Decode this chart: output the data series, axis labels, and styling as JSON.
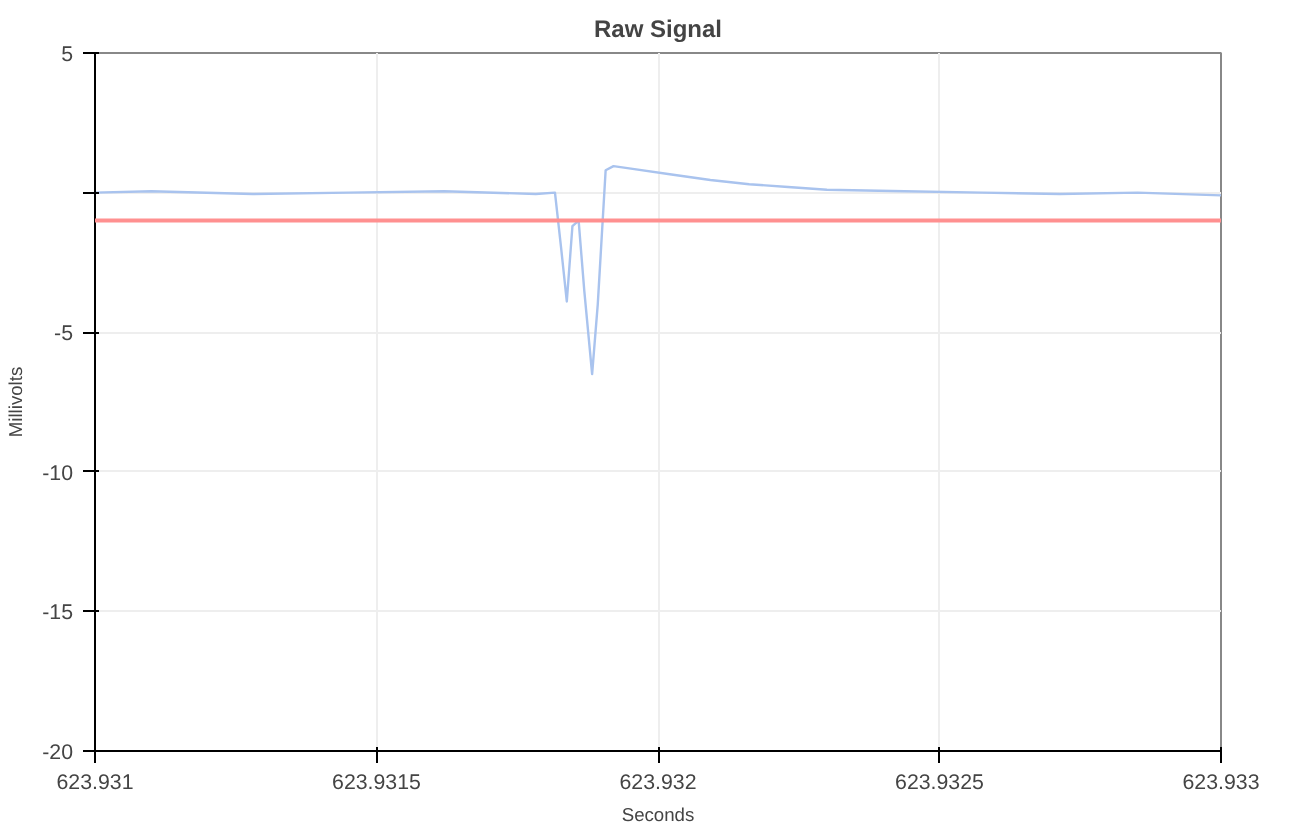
{
  "chart_data": {
    "type": "line",
    "title": "Raw Signal",
    "xlabel": "Seconds",
    "ylabel": "Millivolts",
    "x": [
      623.931,
      623.9311,
      623.93128,
      623.93145,
      623.93162,
      623.931783,
      623.931817,
      623.931828,
      623.931838,
      623.931848,
      623.931859,
      623.931869,
      623.931883,
      623.931893,
      623.931907,
      623.931921,
      623.931955,
      623.932024,
      623.932093,
      623.932162,
      623.932231,
      623.9323,
      623.932438,
      623.932576,
      623.932714,
      623.932852,
      623.933
    ],
    "series": [
      {
        "color": "#a9c3ee",
        "values": [
          0,
          0.05,
          -0.05,
          0,
          0.05,
          -0.05,
          0,
          -2,
          -3.9,
          -1.2,
          -1,
          -3.5,
          -6.5,
          -4,
          0.8,
          0.95,
          0.85,
          0.65,
          0.45,
          0.3,
          0.2,
          0.1,
          0.05,
          0,
          -0.05,
          0,
          -0.1
        ]
      }
    ],
    "ref_lines": [
      {
        "axis": "y",
        "value": -1,
        "color": "#ff9090"
      }
    ],
    "xlim": [
      623.931,
      623.933
    ],
    "xticks": [
      623.931,
      623.9315,
      623.932,
      623.9325,
      623.933
    ],
    "ylim": [
      -20,
      5
    ],
    "yticks": [
      -20,
      -15,
      -10,
      -5,
      {
        "value": 0,
        "label": null
      },
      5
    ],
    "grid": true,
    "marker": "none",
    "line_style": "solid"
  }
}
